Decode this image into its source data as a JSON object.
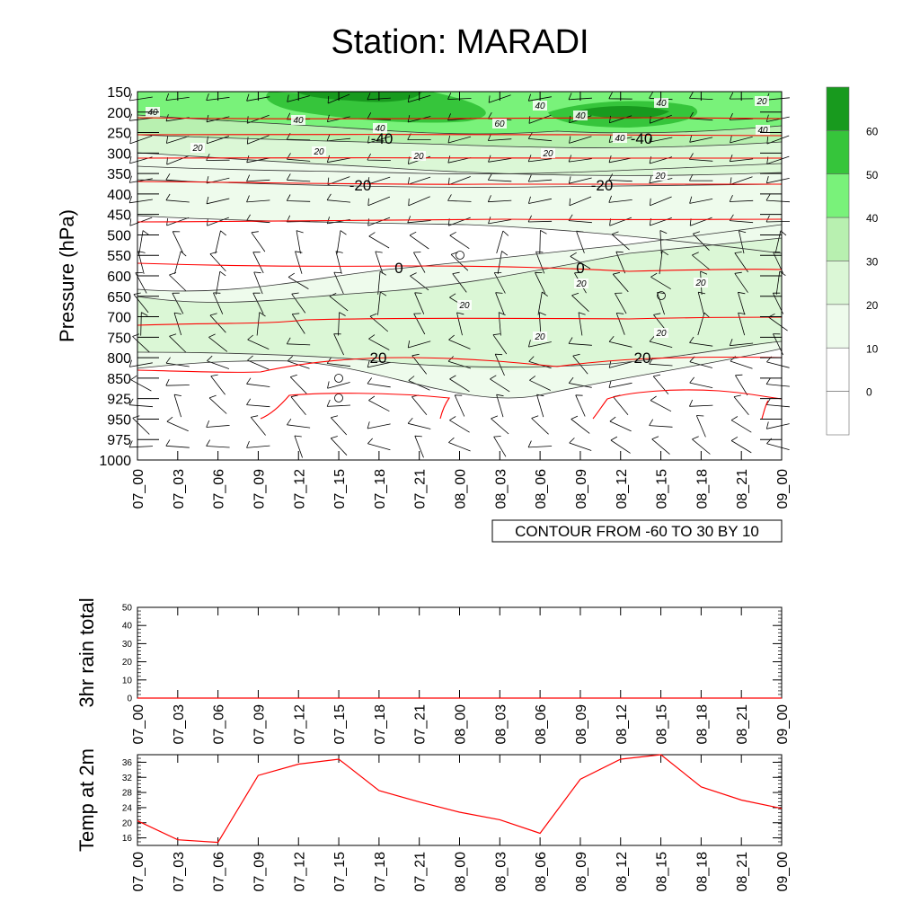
{
  "title": "Station: MARADI",
  "colors": {
    "fill_levels": [
      "#ffffff",
      "#ffffff",
      "#eefbec",
      "#dbf7d6",
      "#b8f0b0",
      "#79f27a",
      "#36c53b",
      "#189a1e"
    ],
    "temperature_contour": "#ff0000",
    "wind_contour": "#333333",
    "line_series": "#ff0000"
  },
  "chart_data": [
    {
      "type": "heatmap",
      "name": "time-height cross section",
      "ylabel": "Pressure (hPa)",
      "xlabel": "",
      "x_ticks": [
        "07_00",
        "07_03",
        "07_06",
        "07_09",
        "07_12",
        "07_15",
        "07_18",
        "07_21",
        "08_00",
        "08_03",
        "08_06",
        "08_09",
        "08_12",
        "08_15",
        "08_18",
        "08_21",
        "09_00"
      ],
      "y_ticks": [
        "150",
        "200",
        "250",
        "300",
        "350",
        "400",
        "450",
        "500",
        "550",
        "600",
        "650",
        "700",
        "750",
        "800",
        "850",
        "925",
        "950",
        "975",
        "1000"
      ],
      "contour_info": "CONTOUR FROM -60 TO 30 BY 10",
      "colorbar_labels": [
        "60",
        "50",
        "40",
        "30",
        "20",
        "10",
        "0"
      ],
      "temperature_contours": [
        {
          "label": "-40",
          "pressure": 240
        },
        {
          "label": "-20",
          "pressure": 375
        },
        {
          "label": "0",
          "pressure": 580
        },
        {
          "label": "20",
          "pressure": 800
        }
      ],
      "wind_contour_labels": [
        "40",
        "40",
        "40",
        "40",
        "40",
        "60",
        "40",
        "40",
        "40",
        "20",
        "20",
        "20",
        "20",
        "20",
        "20",
        "20",
        "20",
        "20",
        "20",
        "20"
      ]
    },
    {
      "type": "line",
      "name": "3hr rain total",
      "ylabel": "3hr rain total",
      "ylim": [
        0,
        50
      ],
      "y_ticks": [
        "0",
        "10",
        "20",
        "30",
        "40",
        "50"
      ],
      "x_ticks": [
        "07_00",
        "07_03",
        "07_06",
        "07_09",
        "07_12",
        "07_15",
        "07_18",
        "07_21",
        "08_00",
        "08_03",
        "08_06",
        "08_09",
        "08_12",
        "08_15",
        "08_18",
        "08_21",
        "09_00"
      ],
      "values": [
        0,
        0,
        0,
        0,
        0,
        0,
        0,
        0,
        0,
        0,
        0,
        0,
        0,
        0,
        0,
        0,
        0
      ]
    },
    {
      "type": "line",
      "name": "Temp at 2m",
      "ylabel": "Temp at 2m",
      "ylim": [
        14,
        38
      ],
      "y_ticks": [
        "16",
        "20",
        "24",
        "28",
        "32",
        "36"
      ],
      "x_ticks": [
        "07_00",
        "07_03",
        "07_06",
        "07_09",
        "07_12",
        "07_15",
        "07_18",
        "07_21",
        "08_00",
        "08_03",
        "08_06",
        "08_09",
        "08_12",
        "08_15",
        "08_18",
        "08_21",
        "09_00"
      ],
      "values": [
        20.5,
        15.5,
        14.8,
        32.5,
        35.5,
        36.8,
        28.5,
        25.5,
        22.8,
        20.8,
        17.2,
        31.5,
        36.8,
        38.0,
        29.5,
        26.0,
        23.8
      ]
    }
  ]
}
